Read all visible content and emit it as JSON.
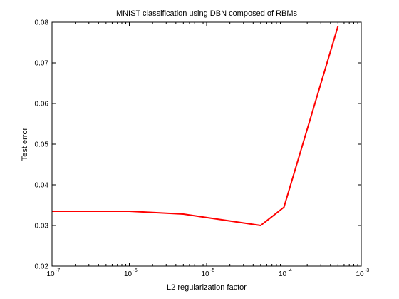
{
  "chart_data": {
    "type": "line",
    "title": "MNIST classification using DBN composed of RBMs",
    "xlabel": "L2 regularization factor",
    "ylabel": "Test error",
    "xscale": "log",
    "xlim": [
      1e-07,
      0.001
    ],
    "ylim": [
      0.02,
      0.08
    ],
    "grid": false,
    "x_ticks": [
      {
        "base": "10",
        "exp": "-7",
        "value": 1e-07
      },
      {
        "base": "10",
        "exp": "-6",
        "value": 1e-06
      },
      {
        "base": "10",
        "exp": "-5",
        "value": 1e-05
      },
      {
        "base": "10",
        "exp": "-4",
        "value": 0.0001
      },
      {
        "base": "10",
        "exp": "-3",
        "value": 0.001
      }
    ],
    "y_ticks": [
      "0.02",
      "0.03",
      "0.04",
      "0.05",
      "0.06",
      "0.07",
      "0.08"
    ],
    "series": [
      {
        "color": "#ff0000",
        "x": [
          1e-07,
          1e-06,
          5e-06,
          5e-05,
          0.0001,
          0.0005
        ],
        "y": [
          0.0335,
          0.0335,
          0.0328,
          0.03,
          0.0345,
          0.079
        ]
      }
    ]
  }
}
